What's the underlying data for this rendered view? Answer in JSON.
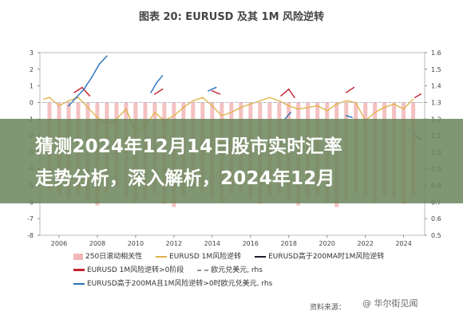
{
  "chart_data": {
    "type": "line",
    "title": "图表 20: EURUSD 及其 1M 风险逆转",
    "x_ticks": [
      "2006",
      "2008",
      "2010",
      "2012",
      "2014",
      "2016",
      "2018",
      "2020",
      "2022",
      "2024"
    ],
    "left_ticks": [
      "3",
      "2",
      "1",
      "0",
      "-1",
      "-2",
      "-3",
      "-4",
      "-5",
      "-6",
      "-7",
      "-8"
    ],
    "right_ticks": [
      "1.6",
      "1.5",
      "1.4",
      "1.3",
      "1.2",
      "1.1",
      "1.0",
      "0.9",
      "0.8",
      "0.7",
      "0.6",
      "0.5"
    ],
    "ylim_left": [
      -8,
      3
    ],
    "ylim_right": [
      0.5,
      1.6
    ],
    "series": [
      {
        "name": "250日滚动相关性",
        "axis": "left",
        "style": "bar",
        "color": "#f2b6b6",
        "x": [
          2005.5,
          2006.0,
          2006.5,
          2007.0,
          2007.5,
          2008.0,
          2008.5,
          2009.0,
          2009.5,
          2010.0,
          2010.5,
          2011.0,
          2011.5,
          2012.0,
          2012.5,
          2013.0,
          2013.5,
          2014.0,
          2014.5,
          2015.0,
          2015.5,
          2016.0,
          2016.5,
          2017.0,
          2017.5,
          2018.0,
          2018.5,
          2019.0,
          2019.5,
          2020.0,
          2020.5,
          2021.0,
          2021.5,
          2022.0,
          2022.5,
          2023.0,
          2023.5,
          2024.0,
          2024.5
        ],
        "values": [
          -5.3,
          -5.6,
          -5.8,
          -5.5,
          -5.9,
          -6.2,
          -5.4,
          -5.0,
          -5.7,
          -6.0,
          -5.8,
          -5.5,
          -6.1,
          -6.3,
          -5.6,
          -5.2,
          -5.4,
          -5.8,
          -6.0,
          -5.5,
          -5.3,
          -5.8,
          -6.1,
          -5.7,
          -5.5,
          -5.9,
          -6.2,
          -5.8,
          -5.6,
          -6.0,
          -6.3,
          -5.9,
          -5.4,
          -5.7,
          -6.0,
          -5.6,
          -5.8,
          -6.1,
          -5.7
        ]
      },
      {
        "name": "EURUSD 1M风险逆转",
        "axis": "left",
        "style": "line",
        "color": "#e0b44a",
        "x": [
          2005.2,
          2005.5,
          2006.0,
          2006.5,
          2007.0,
          2007.5,
          2008.0,
          2008.5,
          2009.0,
          2009.5,
          2010.0,
          2010.5,
          2011.0,
          2011.5,
          2012.0,
          2012.5,
          2013.0,
          2013.5,
          2014.0,
          2014.5,
          2015.0,
          2015.5,
          2016.0,
          2016.5,
          2017.0,
          2017.5,
          2018.0,
          2018.5,
          2019.0,
          2019.5,
          2020.0,
          2020.5,
          2021.0,
          2021.5,
          2022.0,
          2022.5,
          2023.0,
          2023.5,
          2024.0,
          2024.5
        ],
        "values": [
          0.2,
          0.3,
          -0.2,
          0.1,
          0.3,
          -0.3,
          -0.9,
          -1.3,
          -1.0,
          -0.4,
          -1.8,
          -1.4,
          -0.6,
          -1.1,
          -0.8,
          -0.3,
          0.1,
          0.3,
          -0.2,
          -0.8,
          -0.6,
          -0.3,
          -0.1,
          0.1,
          0.3,
          0.1,
          -0.2,
          -0.4,
          -0.3,
          -0.2,
          -0.5,
          -0.1,
          0.1,
          0.0,
          -1.1,
          -0.6,
          -0.3,
          -0.1,
          -0.4,
          0.2
        ]
      },
      {
        "name": "EURUSD高于200MA时1M风险逆转",
        "axis": "left",
        "style": "line",
        "color": "#c4212e",
        "x": [
          2006.8,
          2007.2,
          2007.6,
          2011.0,
          2011.4,
          2014.0,
          2014.4,
          2017.6,
          2018.0,
          2018.3,
          2021.0,
          2021.4,
          2024.6,
          2024.9
        ],
        "values": [
          0.6,
          0.9,
          0.4,
          0.5,
          0.8,
          0.7,
          0.5,
          0.4,
          0.8,
          0.3,
          0.6,
          0.9,
          0.3,
          0.5
        ],
        "segments": [
          [
            0,
            1,
            2
          ],
          [
            3,
            4
          ],
          [
            5,
            6
          ],
          [
            7,
            8,
            9
          ],
          [
            10,
            11
          ],
          [
            12,
            13
          ]
        ]
      },
      {
        "name": "EURUSD高于200MA且1M风险逆转>0时欧元兑美元",
        "axis": "right",
        "style": "line",
        "color": "#2b6fb8",
        "x": [
          2006.5,
          2006.9,
          2007.3,
          2007.7,
          2008.1,
          2008.5,
          2010.8,
          2011.1,
          2011.4,
          2013.8,
          2014.2,
          2017.8,
          2018.1,
          2021.0,
          2021.3,
          2024.6,
          2024.9
        ],
        "values": [
          1.28,
          1.33,
          1.38,
          1.45,
          1.53,
          1.58,
          1.36,
          1.42,
          1.46,
          1.37,
          1.39,
          1.2,
          1.24,
          1.22,
          1.21,
          1.1,
          1.08
        ],
        "segments": [
          [
            0,
            1,
            2,
            3,
            4,
            5
          ],
          [
            6,
            7,
            8
          ],
          [
            9,
            10
          ],
          [
            11,
            12
          ],
          [
            13,
            14
          ],
          [
            15,
            16
          ]
        ]
      },
      {
        "name": "欧元兑美元, rhs",
        "axis": "right",
        "style": "dashed",
        "color": "#999999",
        "x": [
          2005.2,
          2024.9
        ],
        "values": [
          1.3,
          1.3
        ]
      }
    ],
    "legend_labels": [
      "250日滚动相关性",
      "EURUSD 1M风险逆转",
      "EURUSD高于200MA时1M风险逆转",
      "EURUSD 1M风险逆转>0阶段",
      "欧元兑美元, rhs",
      "EURUSD高于200MA且1M风险逆转>0时欧元兑美元, rhs"
    ]
  },
  "overlay": {
    "line1": "猜测2024年12月14日股市实时汇率",
    "line2": "走势分析，深入解析，2024年12月"
  },
  "source": "资料来源：",
  "watermark": "@ 华尔街见闻",
  "colors": {
    "overlay": "#6c865c",
    "bar": "#f2b6b6",
    "orange": "#e0b44a",
    "red": "#c4212e",
    "blue": "#2b6fb8",
    "grey": "#999999"
  }
}
